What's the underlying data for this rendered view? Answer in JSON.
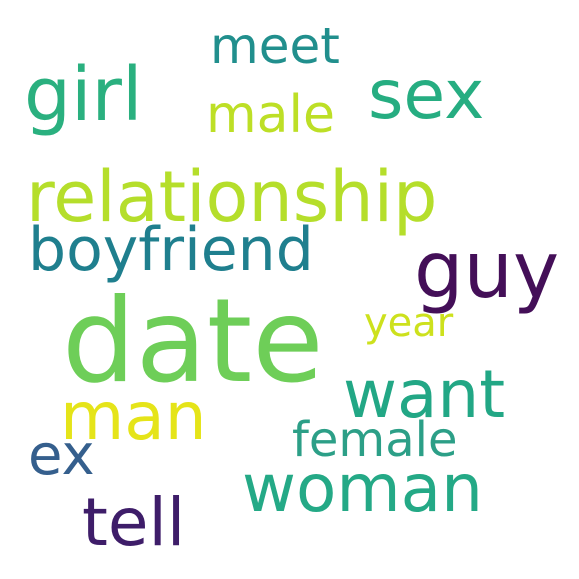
{
  "words": {
    "date": {
      "text": "date",
      "color": "#6ece58"
    },
    "relationship": {
      "text": "relationship",
      "color": "#b5de2b"
    },
    "boyfriend": {
      "text": "boyfriend",
      "color": "#1f7f8e"
    },
    "guy": {
      "text": "guy",
      "color": "#440f58"
    },
    "girl": {
      "text": "girl",
      "color": "#2ab07f"
    },
    "sex": {
      "text": "sex",
      "color": "#26ad81"
    },
    "male": {
      "text": "male",
      "color": "#bddf26"
    },
    "meet": {
      "text": "meet",
      "color": "#218f8d"
    },
    "want": {
      "text": "want",
      "color": "#22a785"
    },
    "year": {
      "text": "year",
      "color": "#cde11d"
    },
    "man": {
      "text": "man",
      "color": "#e5e419"
    },
    "female": {
      "text": "female",
      "color": "#2c9f87"
    },
    "ex": {
      "text": "ex",
      "color": "#355f8d"
    },
    "woman": {
      "text": "woman",
      "color": "#24a986"
    },
    "tell": {
      "text": "tell",
      "color": "#3e1d69"
    }
  }
}
